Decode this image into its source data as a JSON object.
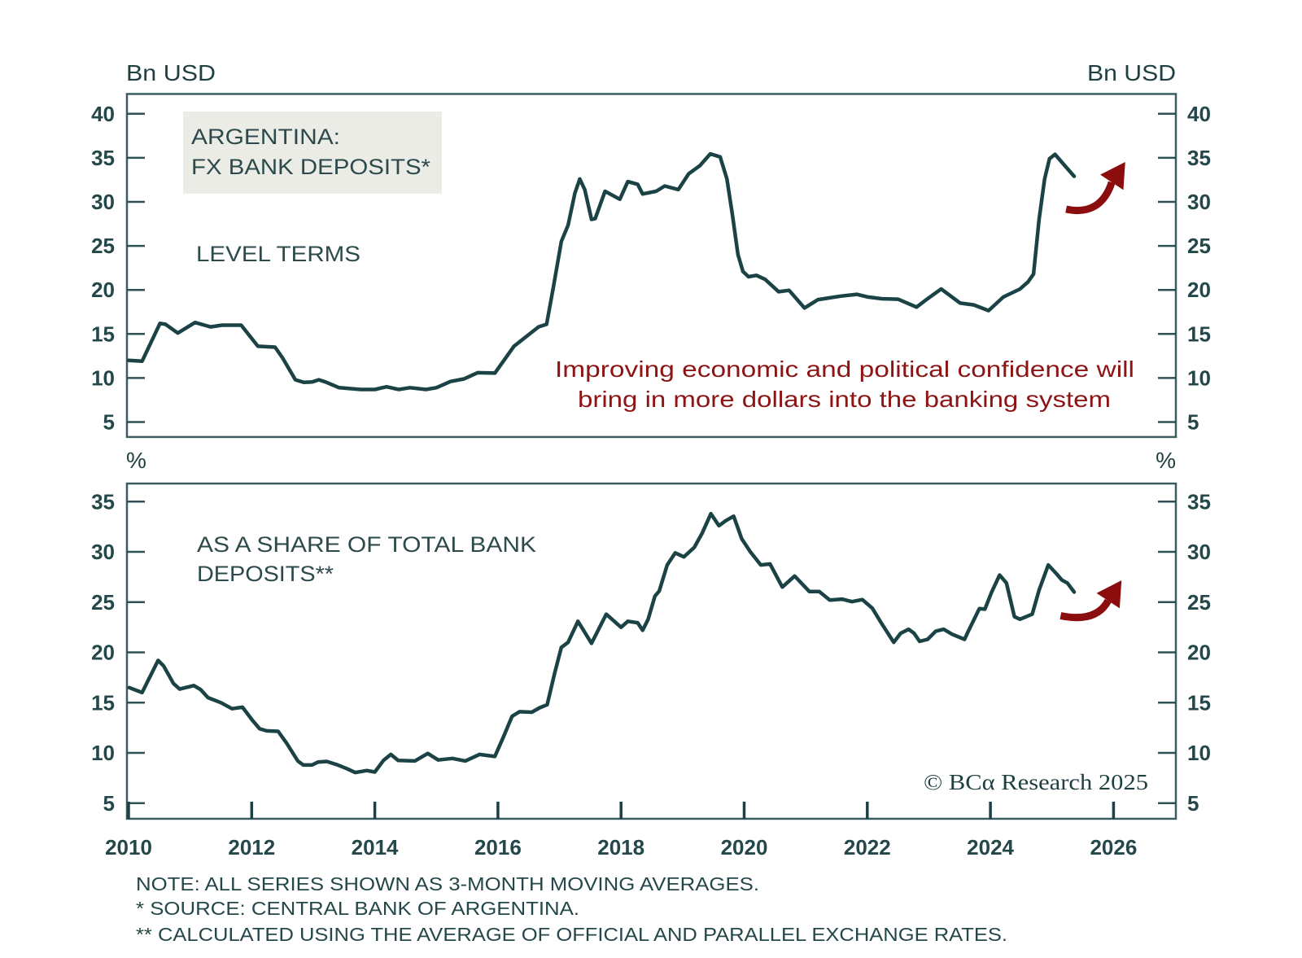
{
  "colors": {
    "series": "#1b4346",
    "text": "#1f3f41",
    "annotation_red": "#8c1414",
    "title_box_bg": "#ecece7"
  },
  "chart_data": [
    {
      "type": "line",
      "panel": "top",
      "title": "ARGENTINA: FX BANK DEPOSITS*",
      "title_lines": [
        "ARGENTINA:",
        "FX BANK DEPOSITS*"
      ],
      "subtitle": "LEVEL TERMS",
      "ylabel_left": "Bn USD",
      "ylabel_right": "Bn USD",
      "xlabel": "",
      "xlim": [
        2010,
        2027
      ],
      "ylim": [
        3.3,
        42.25
      ],
      "yticks": [
        5,
        10,
        15,
        20,
        25,
        30,
        35,
        40
      ],
      "grid": false,
      "annotation_lines": [
        "Improving economic and political confidence will",
        "bring in more dollars into the banking system"
      ],
      "arrow": {
        "from": [
          2025.23,
          29.17
        ],
        "to": [
          2026.19,
          34.53
        ],
        "meaning": "expected increase"
      },
      "series": [
        {
          "name": "FX bank deposits (Bn USD, 3-month moving average)",
          "points": [
            [
              2010.0,
              12.0
            ],
            [
              2010.22,
              11.9
            ],
            [
              2010.51,
              16.2
            ],
            [
              2010.6,
              16.1
            ],
            [
              2010.8,
              15.1
            ],
            [
              2011.08,
              16.3
            ],
            [
              2011.33,
              15.8
            ],
            [
              2011.52,
              16.0
            ],
            [
              2011.83,
              16.0
            ],
            [
              2012.1,
              13.6
            ],
            [
              2012.38,
              13.5
            ],
            [
              2012.5,
              12.3
            ],
            [
              2012.71,
              9.8
            ],
            [
              2012.85,
              9.5
            ],
            [
              2012.98,
              9.55
            ],
            [
              2013.09,
              9.8
            ],
            [
              2013.2,
              9.55
            ],
            [
              2013.42,
              8.9
            ],
            [
              2013.77,
              8.7
            ],
            [
              2014.0,
              8.7
            ],
            [
              2014.19,
              9.0
            ],
            [
              2014.39,
              8.7
            ],
            [
              2014.57,
              8.9
            ],
            [
              2014.83,
              8.7
            ],
            [
              2015.0,
              8.9
            ],
            [
              2015.23,
              9.6
            ],
            [
              2015.45,
              9.9
            ],
            [
              2015.67,
              10.6
            ],
            [
              2015.95,
              10.55
            ],
            [
              2016.26,
              13.6
            ],
            [
              2016.46,
              14.7
            ],
            [
              2016.66,
              15.8
            ],
            [
              2016.79,
              16.1
            ],
            [
              2016.9,
              20.3
            ],
            [
              2017.03,
              25.5
            ],
            [
              2017.14,
              27.35
            ],
            [
              2017.25,
              31.0
            ],
            [
              2017.33,
              32.6
            ],
            [
              2017.41,
              31.4
            ],
            [
              2017.52,
              28.0
            ],
            [
              2017.58,
              28.1
            ],
            [
              2017.74,
              31.2
            ],
            [
              2017.98,
              30.3
            ],
            [
              2018.11,
              32.3
            ],
            [
              2018.27,
              32.0
            ],
            [
              2018.35,
              30.9
            ],
            [
              2018.57,
              31.2
            ],
            [
              2018.71,
              31.8
            ],
            [
              2018.93,
              31.4
            ],
            [
              2019.1,
              33.2
            ],
            [
              2019.28,
              34.1
            ],
            [
              2019.45,
              35.45
            ],
            [
              2019.61,
              35.1
            ],
            [
              2019.72,
              32.6
            ],
            [
              2019.81,
              28.5
            ],
            [
              2019.9,
              24.0
            ],
            [
              2019.98,
              22.1
            ],
            [
              2020.07,
              21.5
            ],
            [
              2020.2,
              21.65
            ],
            [
              2020.34,
              21.2
            ],
            [
              2020.56,
              19.8
            ],
            [
              2020.73,
              19.95
            ],
            [
              2020.98,
              17.95
            ],
            [
              2021.2,
              18.9
            ],
            [
              2021.57,
              19.3
            ],
            [
              2021.83,
              19.5
            ],
            [
              2022.01,
              19.2
            ],
            [
              2022.23,
              19.0
            ],
            [
              2022.5,
              18.95
            ],
            [
              2022.8,
              18.05
            ],
            [
              2022.98,
              19.0
            ],
            [
              2023.2,
              20.1
            ],
            [
              2023.51,
              18.5
            ],
            [
              2023.73,
              18.3
            ],
            [
              2023.97,
              17.65
            ],
            [
              2024.21,
              19.2
            ],
            [
              2024.48,
              20.1
            ],
            [
              2024.61,
              20.9
            ],
            [
              2024.7,
              21.8
            ],
            [
              2024.79,
              28.0
            ],
            [
              2024.88,
              32.6
            ],
            [
              2024.96,
              34.9
            ],
            [
              2025.05,
              35.4
            ],
            [
              2025.21,
              34.1
            ],
            [
              2025.36,
              32.9
            ]
          ]
        }
      ]
    },
    {
      "type": "line",
      "panel": "bottom",
      "title": "AS A SHARE OF TOTAL BANK DEPOSITS**",
      "title_lines": [
        "AS A SHARE OF TOTAL BANK",
        "DEPOSITS**"
      ],
      "ylabel_left": "%",
      "ylabel_right": "%",
      "xlabel": "",
      "xlim": [
        2010,
        2027
      ],
      "ylim": [
        3.45,
        36.8
      ],
      "yticks": [
        5,
        10,
        15,
        20,
        25,
        30,
        35
      ],
      "xticks": [
        2010,
        2012,
        2014,
        2016,
        2018,
        2020,
        2022,
        2024,
        2026
      ],
      "xtick_labels": [
        "2010",
        "2012",
        "2014",
        "2016",
        "2018",
        "2020",
        "2022",
        "2024",
        "2026"
      ],
      "grid": false,
      "arrow": {
        "from": [
          2025.14,
          23.65
        ],
        "to": [
          2026.13,
          27.17
        ],
        "meaning": "expected increase"
      },
      "series": [
        {
          "name": "FX deposits as share of total bank deposits (%, 3-month moving average)",
          "points": [
            [
              2010.01,
              16.5
            ],
            [
              2010.22,
              16.0
            ],
            [
              2010.48,
              19.2
            ],
            [
              2010.57,
              18.65
            ],
            [
              2010.73,
              16.9
            ],
            [
              2010.83,
              16.35
            ],
            [
              2011.06,
              16.7
            ],
            [
              2011.17,
              16.3
            ],
            [
              2011.29,
              15.5
            ],
            [
              2011.5,
              15.0
            ],
            [
              2011.68,
              14.4
            ],
            [
              2011.85,
              14.55
            ],
            [
              2012.01,
              13.25
            ],
            [
              2012.13,
              12.4
            ],
            [
              2012.24,
              12.2
            ],
            [
              2012.43,
              12.15
            ],
            [
              2012.57,
              10.95
            ],
            [
              2012.75,
              9.2
            ],
            [
              2012.84,
              8.8
            ],
            [
              2012.98,
              8.8
            ],
            [
              2013.08,
              9.1
            ],
            [
              2013.22,
              9.15
            ],
            [
              2013.4,
              8.8
            ],
            [
              2013.54,
              8.45
            ],
            [
              2013.68,
              8.05
            ],
            [
              2013.87,
              8.25
            ],
            [
              2014.0,
              8.1
            ],
            [
              2014.14,
              9.25
            ],
            [
              2014.26,
              9.85
            ],
            [
              2014.38,
              9.25
            ],
            [
              2014.65,
              9.2
            ],
            [
              2014.86,
              9.95
            ],
            [
              2015.03,
              9.3
            ],
            [
              2015.26,
              9.45
            ],
            [
              2015.47,
              9.2
            ],
            [
              2015.7,
              9.85
            ],
            [
              2015.95,
              9.65
            ],
            [
              2016.09,
              11.6
            ],
            [
              2016.23,
              13.65
            ],
            [
              2016.35,
              14.1
            ],
            [
              2016.55,
              14.05
            ],
            [
              2016.68,
              14.5
            ],
            [
              2016.8,
              14.8
            ],
            [
              2016.92,
              17.9
            ],
            [
              2017.03,
              20.5
            ],
            [
              2017.14,
              21.0
            ],
            [
              2017.3,
              23.1
            ],
            [
              2017.39,
              22.2
            ],
            [
              2017.52,
              20.9
            ],
            [
              2017.76,
              23.8
            ],
            [
              2018.0,
              22.5
            ],
            [
              2018.11,
              23.1
            ],
            [
              2018.27,
              22.95
            ],
            [
              2018.35,
              22.2
            ],
            [
              2018.44,
              23.3
            ],
            [
              2018.55,
              25.6
            ],
            [
              2018.62,
              26.1
            ],
            [
              2018.75,
              28.7
            ],
            [
              2018.88,
              29.9
            ],
            [
              2019.02,
              29.5
            ],
            [
              2019.19,
              30.45
            ],
            [
              2019.32,
              31.9
            ],
            [
              2019.46,
              33.8
            ],
            [
              2019.59,
              32.6
            ],
            [
              2019.7,
              33.1
            ],
            [
              2019.83,
              33.55
            ],
            [
              2019.96,
              31.3
            ],
            [
              2020.1,
              30.0
            ],
            [
              2020.27,
              28.7
            ],
            [
              2020.42,
              28.8
            ],
            [
              2020.62,
              26.5
            ],
            [
              2020.82,
              27.6
            ],
            [
              2021.06,
              26.05
            ],
            [
              2021.22,
              26.05
            ],
            [
              2021.39,
              25.2
            ],
            [
              2021.59,
              25.3
            ],
            [
              2021.75,
              25.05
            ],
            [
              2021.92,
              25.25
            ],
            [
              2022.08,
              24.4
            ],
            [
              2022.23,
              22.9
            ],
            [
              2022.43,
              21.0
            ],
            [
              2022.54,
              21.9
            ],
            [
              2022.67,
              22.3
            ],
            [
              2022.76,
              21.9
            ],
            [
              2022.85,
              21.1
            ],
            [
              2022.98,
              21.3
            ],
            [
              2023.11,
              22.1
            ],
            [
              2023.24,
              22.3
            ],
            [
              2023.38,
              21.8
            ],
            [
              2023.58,
              21.3
            ],
            [
              2023.64,
              22.1
            ],
            [
              2023.82,
              24.35
            ],
            [
              2023.91,
              24.3
            ],
            [
              2024.02,
              26.0
            ],
            [
              2024.15,
              27.7
            ],
            [
              2024.26,
              26.9
            ],
            [
              2024.39,
              23.55
            ],
            [
              2024.48,
              23.3
            ],
            [
              2024.68,
              23.8
            ],
            [
              2024.79,
              26.2
            ],
            [
              2024.94,
              28.7
            ],
            [
              2025.07,
              27.85
            ],
            [
              2025.16,
              27.2
            ],
            [
              2025.25,
              26.9
            ],
            [
              2025.36,
              26.0
            ]
          ]
        }
      ]
    }
  ],
  "copyright": "© BCα Research 2025",
  "notes": [
    "NOTE: ALL SERIES SHOWN AS 3-MONTH MOVING AVERAGES.",
    "*  SOURCE: CENTRAL BANK OF ARGENTINA.",
    "** CALCULATED USING THE AVERAGE OF OFFICIAL AND PARALLEL EXCHANGE RATES."
  ]
}
